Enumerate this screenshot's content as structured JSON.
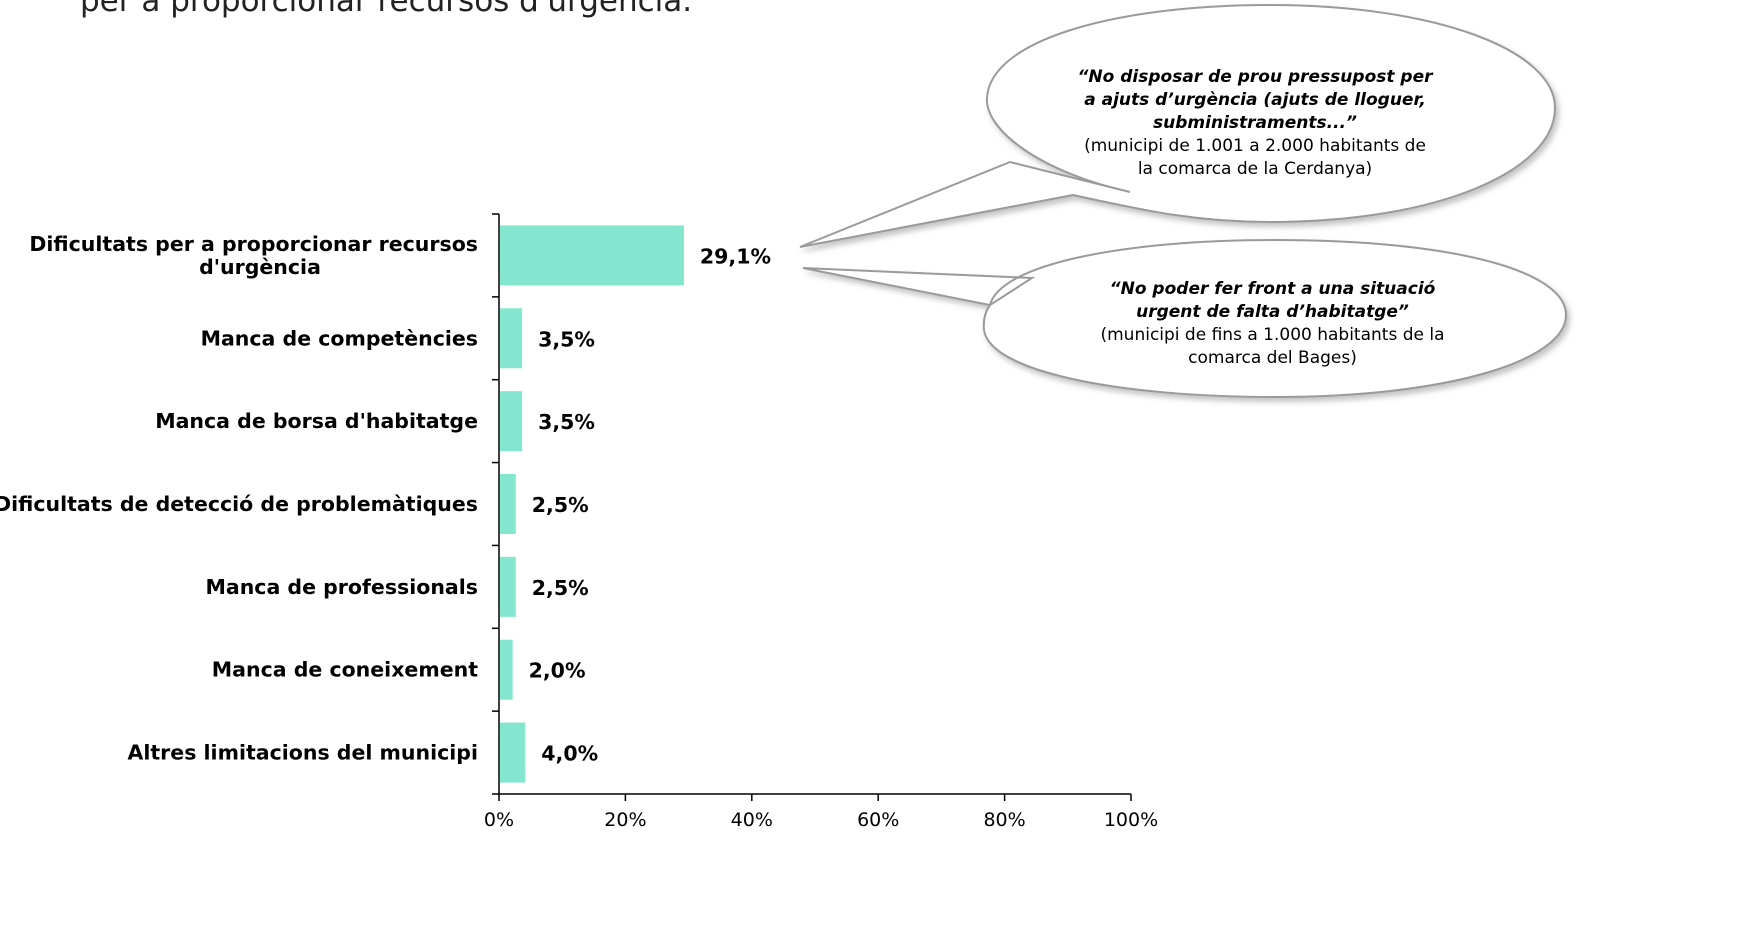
{
  "header": {
    "text_fragment": "per a proporcionar recursos d'urgència."
  },
  "chart_data": {
    "type": "bar",
    "orientation": "horizontal",
    "bar_color": "#84E6CF",
    "categories": [
      "Dificultats per a proporcionar recursos d'urgència",
      "Manca de competències",
      "Manca de borsa d'habitatge",
      "Dificultats de detecció de problemàtiques",
      "Manca de professionals",
      "Manca de coneixement",
      "Altres limitacions del municipi"
    ],
    "category_label_lines": [
      [
        "Dificultats per a proporcionar recursos",
        "d'urgència"
      ],
      [
        "Manca de competències"
      ],
      [
        "Manca de borsa d'habitatge"
      ],
      [
        "Dificultats de detecció de problemàtiques"
      ],
      [
        "Manca de professionals"
      ],
      [
        "Manca de coneixement"
      ],
      [
        "Altres limitacions del municipi"
      ]
    ],
    "values": [
      29.1,
      3.5,
      3.5,
      2.5,
      2.5,
      2.0,
      4.0
    ],
    "value_labels": [
      "29,1%",
      "3,5%",
      "3,5%",
      "2,5%",
      "2,5%",
      "2,0%",
      "4,0%"
    ],
    "xlim": [
      0,
      100
    ],
    "x_ticks": [
      "0%",
      "20%",
      "40%",
      "60%",
      "80%",
      "100%"
    ],
    "grid": false,
    "title": "",
    "xlabel": "",
    "ylabel": ""
  },
  "callouts": [
    {
      "quote": "“No disposar de prou pressupost per a ajuts d’urgència (ajuts de lloguer, subministraments...”",
      "source": "(municipi de 1.001 a 2.000 habitants de la comarca de la Cerdanya)"
    },
    {
      "quote": "“No poder fer front a una situació urgent de falta d’habitatge”",
      "source": "(municipi de fins a 1.000 habitants de la comarca del Bages)"
    }
  ]
}
